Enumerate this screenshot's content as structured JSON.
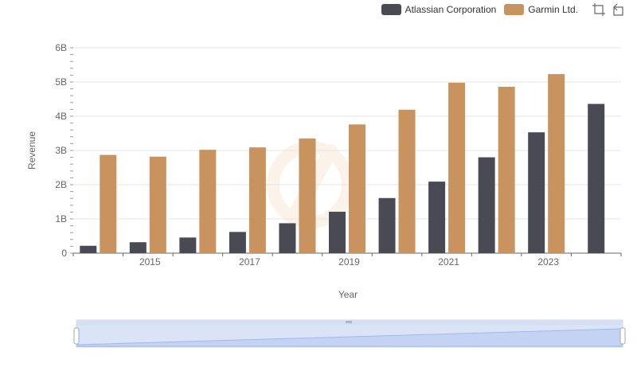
{
  "legend": {
    "items": [
      {
        "name": "Atlassian Corporation",
        "color": "#4a4a55"
      },
      {
        "name": "Garmin Ltd.",
        "color": "#c9935f"
      }
    ]
  },
  "toolbox": {
    "icons": [
      "zoom-icon",
      "restore-icon"
    ]
  },
  "chart_data": {
    "type": "bar",
    "xlabel": "Year",
    "ylabel": "Revenue",
    "x": [
      2014,
      2015,
      2016,
      2017,
      2018,
      2019,
      2020,
      2021,
      2022,
      2023,
      2024
    ],
    "x_tick_labels": [
      "2015",
      "2017",
      "2019",
      "2021",
      "2023"
    ],
    "y_tick_labels": [
      "0",
      "1B",
      "2B",
      "3B",
      "4B",
      "5B",
      "6B"
    ],
    "ylim": [
      0,
      6000000000
    ],
    "grid": true,
    "legend_position": "top-right",
    "series": [
      {
        "name": "Atlassian Corporation",
        "color": "#4a4a55",
        "values": [
          215000000,
          320000000,
          457000000,
          620000000,
          874000000,
          1210000000,
          1610000000,
          2090000000,
          2800000000,
          3530000000,
          4360000000
        ]
      },
      {
        "name": "Garmin Ltd.",
        "color": "#c9935f",
        "values": [
          2870000000,
          2820000000,
          3020000000,
          3090000000,
          3350000000,
          3760000000,
          4190000000,
          4980000000,
          4860000000,
          5230000000,
          null
        ]
      }
    ]
  },
  "data_zoom": {
    "start_percent": 0,
    "end_percent": 100
  }
}
